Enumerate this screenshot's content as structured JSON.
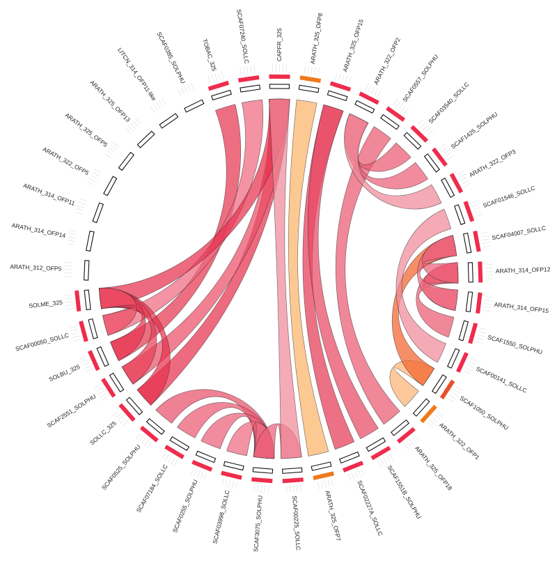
{
  "diagram": {
    "type": "circos-chord",
    "segments": [
      {
        "id": "ARATH_312_OFP5",
        "label": "ARATH_312_OFP5",
        "hist": false
      },
      {
        "id": "ARATH_314_OFP14",
        "label": "ARATH_314_OFP14",
        "hist": false
      },
      {
        "id": "ARATH_314_OFP11",
        "label": "ARATH_314_OFP11",
        "hist": false
      },
      {
        "id": "ARATH_322_OFP5",
        "label": "ARATH_322_OFP5",
        "hist": false
      },
      {
        "id": "ARATH_325_OFP5",
        "label": "ARATH_325_OFP5",
        "hist": false
      },
      {
        "id": "ARATH_325_OFP13",
        "label": "ARATH_325_OFP13",
        "hist": false
      },
      {
        "id": "LITCN_314_OFP11-like",
        "label": "LITCN_314_OFP11-like",
        "hist": false
      },
      {
        "id": "SCAF0385_SOLPHU",
        "label": "SCAF0385_SOLPHU",
        "hist": false
      },
      {
        "id": "TOBAC_325",
        "label": "TOBAC_325",
        "hist": true,
        "color": "red"
      },
      {
        "id": "SCAF07240_SOLLC",
        "label": "SCAF07240_SOLLC",
        "hist": true,
        "color": "red"
      },
      {
        "id": "CAPFR_325",
        "label": "CAPFR_325",
        "hist": true,
        "color": "red"
      },
      {
        "id": "ARATH_325_OFP8",
        "label": "ARATH_325_OFP8",
        "hist": true,
        "color": "orange"
      },
      {
        "id": "ARATH_325_OFP15",
        "label": "ARATH_325_OFP15",
        "hist": true,
        "color": "red"
      },
      {
        "id": "ARATH_322_OFP2",
        "label": "ARATH_322_OFP2",
        "hist": true,
        "color": "red"
      },
      {
        "id": "SCAF0557_SOLPHU",
        "label": "SCAF0557_SOLPHU",
        "hist": true,
        "color": "red"
      },
      {
        "id": "SCAF03540_SOLLC",
        "label": "SCAF03540_SOLLC",
        "hist": true,
        "color": "red"
      },
      {
        "id": "SCAF1425_SOLPHU",
        "label": "SCAF1425_SOLPHU",
        "hist": true,
        "color": "red"
      },
      {
        "id": "ARATH_322_OFP3",
        "label": "ARATH_322_OFP3",
        "hist": true,
        "color": "red"
      },
      {
        "id": "SCAF01546_SOLLC",
        "label": "SCAF01546_SOLLC",
        "hist": true,
        "color": "red"
      },
      {
        "id": "SCAF04007_SOLLC",
        "label": "SCAF04007_SOLLC",
        "hist": true,
        "color": "red"
      },
      {
        "id": "ARATH_314_OFP12",
        "label": "ARATH_314_OFP12",
        "hist": true,
        "color": "red"
      },
      {
        "id": "ARATH_314_OFP15",
        "label": "ARATH_314_OFP15",
        "hist": true,
        "color": "red"
      },
      {
        "id": "SCAF1550_SOLPHU",
        "label": "SCAF1550_SOLPHU",
        "hist": true,
        "color": "red"
      },
      {
        "id": "SCAF00141_SOLLC",
        "label": "SCAF00141_SOLLC",
        "hist": true,
        "color": "red"
      },
      {
        "id": "SCAF1050_SOLPHU",
        "label": "SCAF1050_SOLPHU",
        "hist": true,
        "color": "redorange"
      },
      {
        "id": "ARATH_322_OFP1",
        "label": "ARATH_322_OFP1",
        "hist": true,
        "color": "orange"
      },
      {
        "id": "ARATH_325_OFP18",
        "label": "ARATH_325_OFP18",
        "hist": true,
        "color": "red"
      },
      {
        "id": "SCAF1551B_SOLPHU",
        "label": "SCAF1551B_SOLPHU",
        "hist": true,
        "color": "red"
      },
      {
        "id": "SCAF02227A_SOLLC",
        "label": "SCAF02227A_SOLLC",
        "hist": true,
        "color": "red"
      },
      {
        "id": "ARATH_325_OFP7",
        "label": "ARATH_325_OFP7",
        "hist": true,
        "color": "orange"
      },
      {
        "id": "SCAF00225_SOLLC",
        "label": "SCAF00225_SOLLC",
        "hist": true,
        "color": "red"
      },
      {
        "id": "SCAF3075_SOLPHU",
        "label": "SCAF3075_SOLPHU",
        "hist": true,
        "color": "red"
      },
      {
        "id": "SCAF03998_SOLLC",
        "label": "SCAF03998_SOLLC",
        "hist": true,
        "color": "red"
      },
      {
        "id": "SCAF0255_SOLPHU",
        "label": "SCAF0255_SOLPHU",
        "hist": true,
        "color": "red"
      },
      {
        "id": "SCAF07184_SOLLC",
        "label": "SCAF07184_SOLLC",
        "hist": true,
        "color": "red"
      },
      {
        "id": "SCAF0525_SOLPHU",
        "label": "SCAF0525_SOLPHU",
        "hist": true,
        "color": "red"
      },
      {
        "id": "SOLLC_325",
        "label": "SOLLC_325",
        "hist": true,
        "color": "red"
      },
      {
        "id": "SCAF2551_SOLPHU",
        "label": "SCAF2551_SOLPHU",
        "hist": true,
        "color": "red"
      },
      {
        "id": "SOLBU_325",
        "label": "SOLBU_325",
        "hist": true,
        "color": "red"
      },
      {
        "id": "SCAF00050_SOLLC",
        "label": "SCAF00050_SOLLC",
        "hist": true,
        "color": "red"
      },
      {
        "id": "SOLME_325",
        "label": "SOLME_325",
        "hist": true,
        "color": "red"
      }
    ],
    "links": [
      {
        "from": "SCAF3075_SOLPHU",
        "to": "SCAF0525_SOLPHU",
        "color": "#e8506a"
      },
      {
        "from": "SCAF3075_SOLPHU",
        "to": "SCAF07184_SOLLC",
        "color": "#ea5a72"
      },
      {
        "from": "SCAF3075_SOLPHU",
        "to": "SCAF0255_SOLPHU",
        "color": "#ec6078"
      },
      {
        "from": "SCAF3075_SOLPHU",
        "to": "SCAF03998_SOLLC",
        "color": "#ee6a80"
      },
      {
        "from": "SCAF3075_SOLPHU",
        "to": "SCAF00225_SOLLC",
        "color": "#ec6078"
      },
      {
        "from": "SOLLC_325",
        "to": "CAPFR_325",
        "color": "#e8304e"
      },
      {
        "from": "SCAF2551_SOLPHU",
        "to": "CAPFR_325",
        "color": "#ec5068"
      },
      {
        "from": "SOLBU_325",
        "to": "TOBAC_325",
        "color": "#e83650"
      },
      {
        "from": "SCAF00050_SOLLC",
        "to": "SCAF07240_SOLLC",
        "color": "#ef6a80"
      },
      {
        "from": "SOLME_325",
        "to": "CAPFR_325",
        "color": "#e8304e"
      },
      {
        "from": "SOLLC_325",
        "to": "SOLME_325",
        "color": "#e8304e"
      },
      {
        "from": "SCAF2551_SOLPHU",
        "to": "SOLME_325",
        "color": "#e84058"
      },
      {
        "from": "SOLBU_325",
        "to": "SOLME_325",
        "color": "#e83650"
      },
      {
        "from": "SCAF00050_SOLLC",
        "to": "SOLME_325",
        "color": "#ec5068"
      },
      {
        "from": "SCAF00225_SOLLC",
        "to": "CAPFR_325",
        "color": "#f08a9a"
      },
      {
        "from": "ARATH_325_OFP7",
        "to": "ARATH_325_OFP8",
        "color": "#fbb46a"
      },
      {
        "from": "SCAF02227A_SOLLC",
        "to": "ARATH_325_OFP15",
        "color": "#e63a56"
      },
      {
        "from": "SCAF1551B_SOLPHU",
        "to": "ARATH_325_OFP15",
        "color": "#e84a62"
      },
      {
        "from": "ARATH_325_OFP18",
        "to": "SCAF0557_SOLPHU",
        "color": "#ea5a72"
      },
      {
        "from": "ARATH_322_OFP1",
        "to": "SCAF1050_SOLPHU",
        "color": "#fcb476"
      },
      {
        "from": "SCAF1050_SOLPHU",
        "to": "SCAF04007_SOLLC",
        "color": "#f2642e"
      },
      {
        "from": "SCAF00141_SOLLC",
        "to": "SCAF01546_SOLLC",
        "color": "#f08a9a"
      },
      {
        "from": "SCAF1550_SOLPHU",
        "to": "ARATH_314_OFP12",
        "color": "#ec5a72"
      },
      {
        "from": "ARATH_314_OFP15",
        "to": "ARATH_314_OFP12",
        "color": "#ea5068"
      },
      {
        "from": "ARATH_314_OFP15",
        "to": "SCAF04007_SOLLC",
        "color": "#ee6a80"
      },
      {
        "from": "ARATH_314_OFP12",
        "to": "SCAF04007_SOLLC",
        "color": "#ec6078"
      },
      {
        "from": "ARATH_322_OFP2",
        "to": "SCAF03540_SOLLC",
        "color": "#ea5a72"
      },
      {
        "from": "ARATH_322_OFP2",
        "to": "SCAF1425_SOLPHU",
        "color": "#ec6078"
      },
      {
        "from": "ARATH_322_OFP2",
        "to": "ARATH_322_OFP3",
        "color": "#f08a9a"
      }
    ]
  }
}
